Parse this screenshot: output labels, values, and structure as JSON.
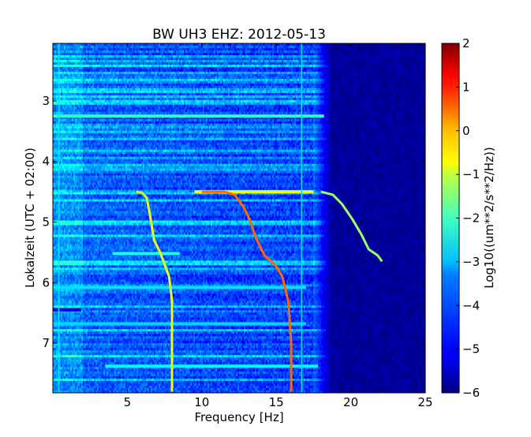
{
  "chart_data": {
    "type": "heatmap",
    "title": "BW UH3 EHZ: 2012-05-13",
    "xlabel": "Frequency [Hz]",
    "ylabel": "Lokalzeit (UTC + 02:00)",
    "xlim": [
      0,
      25
    ],
    "ylim": [
      7.82,
      2.05
    ],
    "y_axis_inverted": true,
    "x_ticks": [
      5,
      10,
      15,
      20,
      25
    ],
    "y_ticks": [
      3,
      4,
      5,
      6,
      7
    ],
    "colormap": "jet",
    "grid": false,
    "colorbar": {
      "label": "Log10((um**2/s**2/Hz))",
      "range": [
        -6,
        2
      ],
      "ticks": [
        2,
        1,
        0,
        -1,
        -2,
        -3,
        -4,
        -5,
        -6
      ]
    },
    "background_level_low_freq": -4.0,
    "background_level_high_freq": -5.8,
    "noise_cutoff_frequency": 17.5,
    "continuous_lines": [
      {
        "frequency": 16.7,
        "level": -3.3
      },
      {
        "frequency": 0.4,
        "level": -3.2
      }
    ],
    "horizontal_bands": [
      {
        "time": 3.25,
        "freq_range": [
          0,
          18.2
        ],
        "level": -2.6
      },
      {
        "time": 4.5,
        "freq_range": [
          9.5,
          17.5
        ],
        "level": -1.2
      },
      {
        "time": 5.52,
        "freq_range": [
          4,
          8.5
        ],
        "level": -2.8
      },
      {
        "time": 6.08,
        "freq_range": [
          0,
          17
        ],
        "level": -3.2
      },
      {
        "time": 6.45,
        "freq_range": [
          0,
          1.9
        ],
        "level": -5.2
      },
      {
        "time": 6.68,
        "freq_range": [
          0,
          17
        ],
        "level": -3.3
      },
      {
        "time": 7.38,
        "freq_range": [
          3.5,
          17.8
        ],
        "level": -3.0
      }
    ],
    "series": [
      {
        "level": -1.2,
        "points": [
          [
            5.6,
            4.5
          ],
          [
            6.0,
            4.52
          ],
          [
            6.3,
            4.6
          ],
          [
            6.5,
            4.85
          ],
          [
            6.8,
            5.3
          ],
          [
            7.2,
            5.5
          ],
          [
            7.5,
            5.7
          ],
          [
            7.8,
            5.9
          ],
          [
            8.0,
            6.3
          ],
          [
            8.0,
            7.0
          ],
          [
            8.0,
            7.8
          ]
        ]
      },
      {
        "level": 0.2,
        "points": [
          [
            10.0,
            4.5
          ],
          [
            11.5,
            4.5
          ],
          [
            12.2,
            4.55
          ],
          [
            12.8,
            4.75
          ],
          [
            13.2,
            4.95
          ],
          [
            13.6,
            5.25
          ],
          [
            14.2,
            5.55
          ],
          [
            14.9,
            5.7
          ],
          [
            15.4,
            5.9
          ],
          [
            15.8,
            6.3
          ],
          [
            16.0,
            7.0
          ],
          [
            16.0,
            7.8
          ]
        ]
      },
      {
        "level": -1.8,
        "points": [
          [
            18.0,
            4.5
          ],
          [
            18.8,
            4.55
          ],
          [
            19.4,
            4.7
          ],
          [
            20.1,
            4.95
          ],
          [
            20.7,
            5.2
          ],
          [
            21.2,
            5.45
          ],
          [
            21.8,
            5.55
          ],
          [
            22.1,
            5.65
          ]
        ]
      }
    ]
  }
}
